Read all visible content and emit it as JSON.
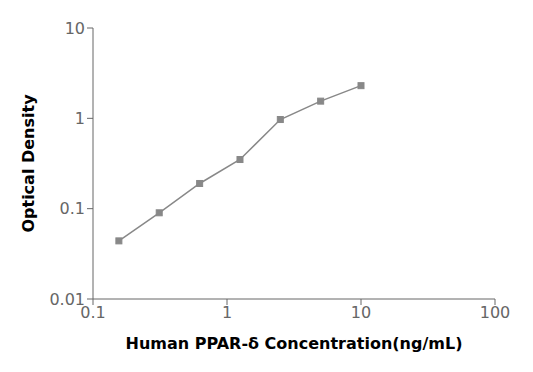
{
  "chart_data": {
    "type": "line",
    "x": [
      0.156,
      0.312,
      0.625,
      1.25,
      2.5,
      5,
      10
    ],
    "values": [
      0.044,
      0.09,
      0.19,
      0.35,
      0.97,
      1.55,
      2.3
    ],
    "xlabel": "Human PPAR-δ Concentration(ng/mL)",
    "ylabel": "Optical Density",
    "xlim": [
      0.1,
      100
    ],
    "ylim": [
      0.01,
      10
    ],
    "xticks": [
      0.1,
      1,
      10,
      100
    ],
    "yticks": [
      0.01,
      0.1,
      1,
      10
    ],
    "log": true,
    "grid": false,
    "color": "#888888",
    "marker": "square"
  }
}
